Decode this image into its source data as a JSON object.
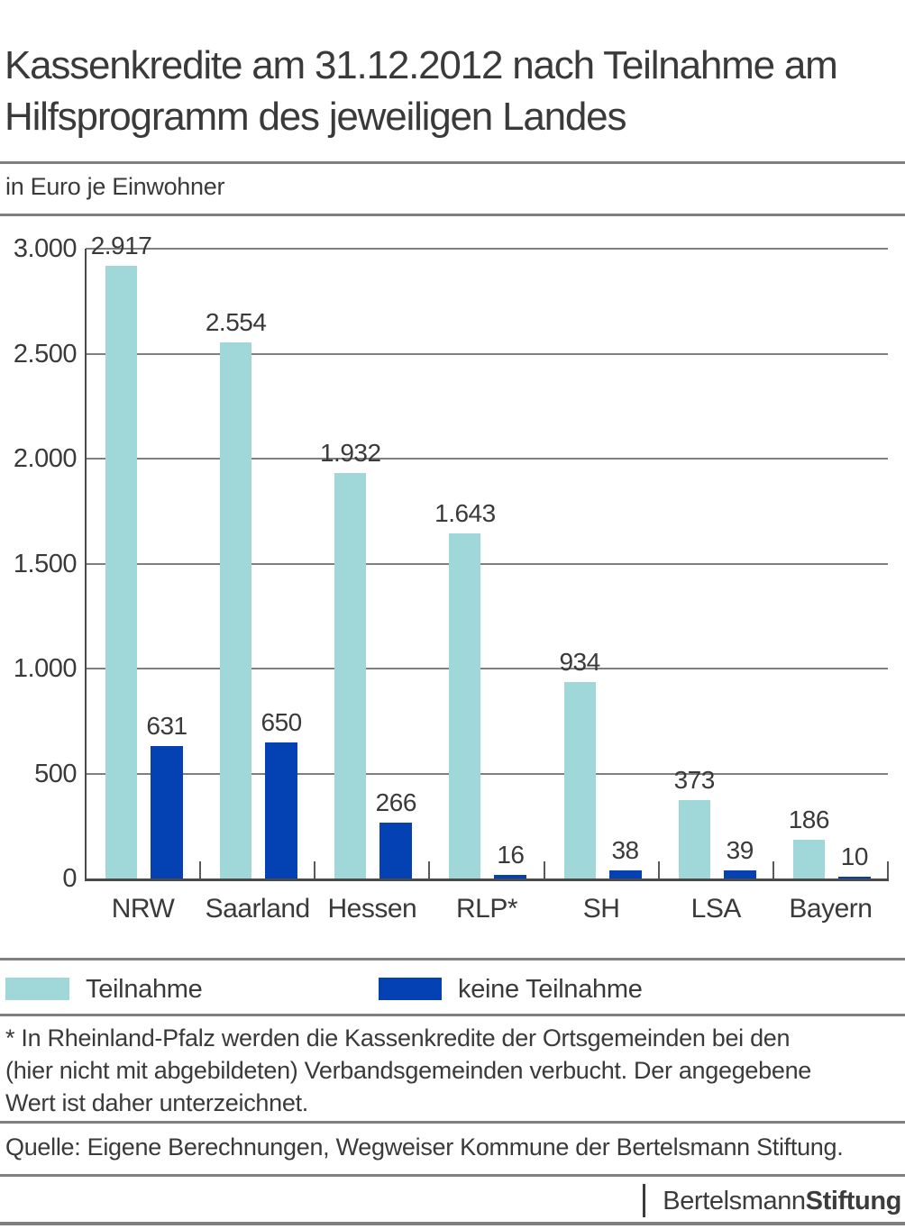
{
  "header": {
    "title_lines": [
      "Kassenkredite am 31.12.2012 nach Teilnahme am",
      "Hilfsprogramm des jeweiligen Landes"
    ],
    "subtitle": "in Euro je Einwohner"
  },
  "chart_data": {
    "type": "bar",
    "title": "Kassenkredite am 31.12.2012 nach Teilnahme am Hilfsprogramm des jeweiligen Landes",
    "ylabel": "in Euro je Einwohner",
    "categories": [
      "NRW",
      "Saarland",
      "Hessen",
      "RLP*",
      "SH",
      "LSA",
      "Bayern"
    ],
    "series": [
      {
        "name": "Teilnahme",
        "color": "#A0D8D9",
        "values": [
          2917,
          2554,
          1932,
          1643,
          934,
          373,
          186
        ],
        "labels": [
          "2.917",
          "2.554",
          "1.932",
          "1.643",
          "934",
          "373",
          "186"
        ]
      },
      {
        "name": "keine Teilnahme",
        "color": "#0441B3",
        "values": [
          631,
          650,
          266,
          16,
          38,
          39,
          10
        ],
        "labels": [
          "631",
          "650",
          "266",
          "16",
          "38",
          "39",
          "10"
        ]
      }
    ],
    "ylim": [
      0,
      3000
    ],
    "yticks": {
      "values": [
        3000,
        2500,
        2000,
        1500,
        1000,
        500,
        0
      ],
      "labels": [
        "3.000",
        "2.500",
        "2.000",
        "1.500",
        "1.000",
        "500",
        "0"
      ]
    },
    "grid": true,
    "legend_position": "bottom"
  },
  "legend": {
    "items": [
      {
        "label": "Teilnahme",
        "color": "#A0D8D9"
      },
      {
        "label": "keine Teilnahme",
        "color": "#0441B3"
      }
    ]
  },
  "footnote_lines": [
    "* In Rheinland-Pfalz werden die Kassenkredite der Ortsgemeinden bei den",
    "(hier nicht mit abgebildeten) Verbandsgemeinden verbucht. Der angegebene",
    "Wert ist daher unterzeichnet."
  ],
  "source": "Quelle: Eigene Berechnungen, Wegweiser Kommune der Bertelsmann Stiftung.",
  "logo": {
    "part1": "Bertelsmann",
    "part2": "Stiftung"
  },
  "colors": {
    "teilnahme": "#A0D8D9",
    "keine_teilnahme": "#0441B3",
    "text": "#3A3A3A",
    "gridline": "#7F7F7F",
    "axis": "#4A4A4A"
  }
}
